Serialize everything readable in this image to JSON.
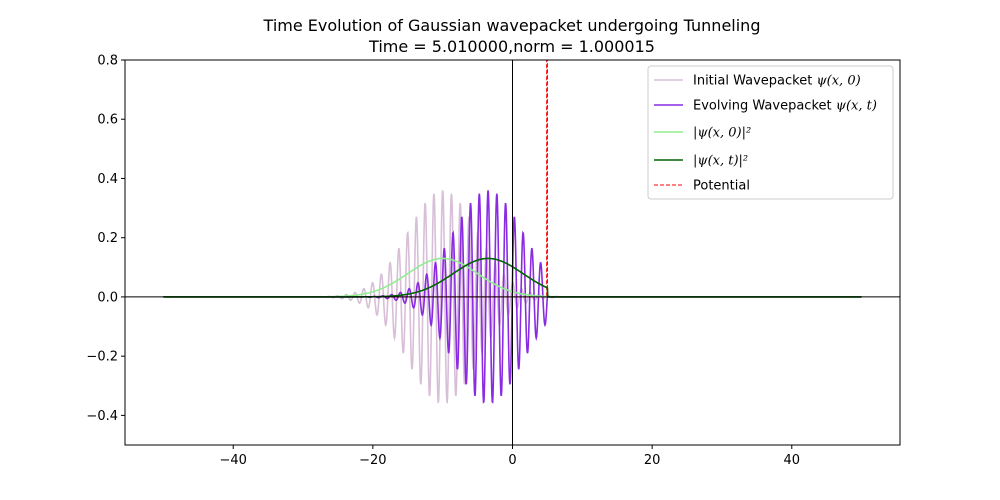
{
  "chart_data": {
    "type": "line",
    "title": "Time Evolution of Gaussian wavepacket undergoing Tunneling",
    "subtitle": "Time =  5.010000,norm =  1.000015",
    "xlabel": "",
    "ylabel": "",
    "xlim": [
      -55.5,
      55.5
    ],
    "ylim": [
      -0.5,
      0.8
    ],
    "x_ticks": [
      -40,
      -20,
      0,
      20,
      40
    ],
    "x_tick_labels": [
      "−40",
      "−20",
      "0",
      "20",
      "40"
    ],
    "y_ticks": [
      -0.4,
      -0.2,
      0.0,
      0.2,
      0.4,
      0.6,
      0.8
    ],
    "y_tick_labels": [
      "−0.4",
      "−0.2",
      "0.0",
      "0.2",
      "0.4",
      "0.6",
      "0.8"
    ],
    "grid": false,
    "axis_lines": {
      "x0": true,
      "y0": true
    },
    "x_range": [
      -50,
      50
    ],
    "legend": {
      "placement": "top-right",
      "entries": [
        {
          "label": "Initial Wavepacket ψ(x, 0)",
          "prefix": "Initial Wavepacket ",
          "math": "ψ(x, 0)",
          "color": "#d8bfd8",
          "dash": "solid"
        },
        {
          "label": "Evolving Wavepacket ψ(x, t)",
          "prefix": "Evolving Wavepacket ",
          "math": "ψ(x, t)",
          "color": "#8a2be2",
          "dash": "solid"
        },
        {
          "label": "|ψ(x, 0)|²",
          "prefix": "",
          "math": "|ψ(x, 0)|²",
          "color": "#90ee90",
          "dash": "solid"
        },
        {
          "label": "|ψ(x, t)|²",
          "prefix": "",
          "math": "|ψ(x, t)|²",
          "color": "#006400",
          "dash": "solid"
        },
        {
          "label": "Potential",
          "prefix": "Potential",
          "math": "",
          "color": "#ff0000",
          "dash": "dashed"
        }
      ]
    },
    "series": [
      {
        "name": "Initial Wavepacket ψ(x, 0)",
        "kind": "gaussian_wave",
        "center": -10,
        "sigma": 5,
        "amplitude": 0.36,
        "wavenumber": 5,
        "color": "#d8bfd8"
      },
      {
        "name": "Evolving Wavepacket ψ(x, t)",
        "kind": "gaussian_wave",
        "center": -3.5,
        "sigma": 5,
        "amplitude": 0.36,
        "wavenumber": 5,
        "cutoff": 5,
        "color": "#8a2be2"
      },
      {
        "name": "|ψ(x, 0)|²",
        "kind": "gaussian",
        "center": -10,
        "sigma": 5,
        "amplitude": 0.13,
        "color": "#90ee90"
      },
      {
        "name": "|ψ(x, t)|²",
        "kind": "gaussian",
        "center": -3.5,
        "sigma": 5,
        "amplitude": 0.13,
        "cutoff": 5,
        "color": "#006400"
      },
      {
        "name": "Potential",
        "kind": "step",
        "points": [
          [
            -50,
            0
          ],
          [
            4.9,
            0
          ],
          [
            4.9,
            0.8
          ],
          [
            5.0,
            0.8
          ],
          [
            5.0,
            0
          ],
          [
            50,
            0
          ]
        ],
        "color": "#ff0000"
      }
    ]
  }
}
